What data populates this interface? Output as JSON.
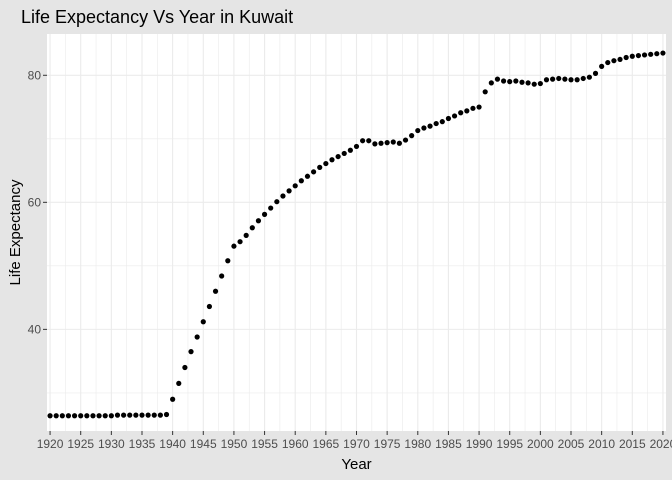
{
  "chart_data": {
    "type": "scatter",
    "title": "Life Expectancy Vs Year in Kuwait",
    "xlabel": "Year",
    "ylabel": "Life Expectancy",
    "xlim": [
      1919.5,
      2020.5
    ],
    "ylim": [
      24,
      86.5
    ],
    "x_ticks": [
      1920,
      1925,
      1930,
      1935,
      1940,
      1945,
      1950,
      1955,
      1960,
      1965,
      1970,
      1975,
      1980,
      1985,
      1990,
      1995,
      2000,
      2005,
      2010,
      2015,
      2020
    ],
    "y_ticks": [
      40,
      60,
      80
    ],
    "grid": true,
    "background": "#ffffff",
    "panel_background": "#e5e5e5",
    "grid_color": "#ebebeb",
    "point_color": "#000000",
    "series": [
      {
        "x": [
          1920,
          1921,
          1922,
          1923,
          1924,
          1925,
          1926,
          1927,
          1928,
          1929,
          1930,
          1931,
          1932,
          1933,
          1934,
          1935,
          1936,
          1937,
          1938,
          1939,
          1940,
          1941,
          1942,
          1943,
          1944,
          1945,
          1946,
          1947,
          1948,
          1949,
          1950,
          1951,
          1952,
          1953,
          1954,
          1955,
          1956,
          1957,
          1958,
          1959,
          1960,
          1961,
          1962,
          1963,
          1964,
          1965,
          1966,
          1967,
          1968,
          1969,
          1970,
          1971,
          1972,
          1973,
          1974,
          1975,
          1976,
          1977,
          1978,
          1979,
          1980,
          1981,
          1982,
          1983,
          1984,
          1985,
          1986,
          1987,
          1988,
          1989,
          1990,
          1991,
          1992,
          1993,
          1994,
          1995,
          1996,
          1997,
          1998,
          1999,
          2000,
          2001,
          2002,
          2003,
          2004,
          2005,
          2006,
          2007,
          2008,
          2009,
          2010,
          2011,
          2012,
          2013,
          2014,
          2015,
          2016,
          2017,
          2018,
          2019,
          2020
        ],
        "y": [
          26.4,
          26.4,
          26.4,
          26.4,
          26.4,
          26.4,
          26.4,
          26.4,
          26.4,
          26.4,
          26.4,
          26.5,
          26.5,
          26.5,
          26.5,
          26.5,
          26.5,
          26.5,
          26.5,
          26.6,
          29.0,
          31.5,
          34.0,
          36.5,
          38.8,
          41.2,
          43.6,
          46.0,
          48.4,
          50.8,
          53.1,
          53.8,
          54.8,
          56.0,
          57.1,
          58.1,
          59.1,
          60.1,
          61.0,
          61.8,
          62.6,
          63.4,
          64.1,
          64.8,
          65.5,
          66.1,
          66.7,
          67.2,
          67.7,
          68.2,
          68.8,
          69.7,
          69.7,
          69.2,
          69.3,
          69.4,
          69.5,
          69.3,
          69.8,
          70.5,
          71.3,
          71.7,
          72.0,
          72.4,
          72.7,
          73.2,
          73.6,
          74.1,
          74.4,
          74.8,
          75.0,
          77.4,
          78.8,
          79.4,
          79.1,
          79.0,
          79.1,
          78.9,
          78.8,
          78.6,
          78.7,
          79.3,
          79.4,
          79.5,
          79.4,
          79.3,
          79.3,
          79.5,
          79.7,
          80.3,
          81.4,
          82.0,
          82.3,
          82.5,
          82.8,
          83.0,
          83.1,
          83.2,
          83.3,
          83.4,
          83.5
        ]
      }
    ]
  }
}
